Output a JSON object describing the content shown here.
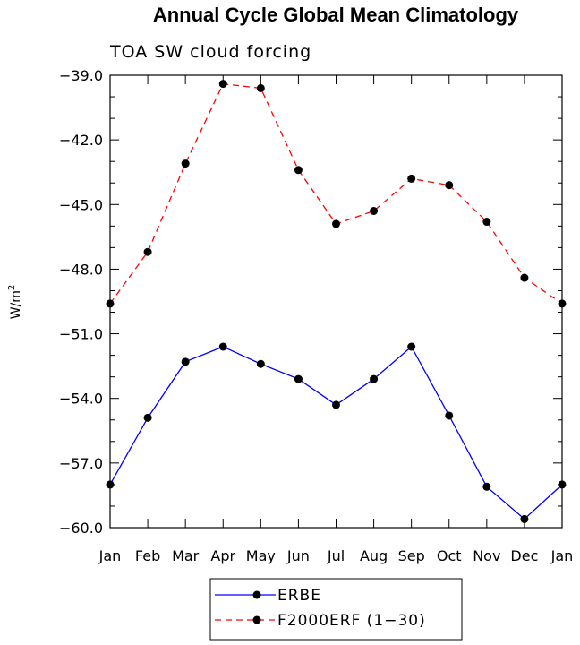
{
  "chart_data": {
    "type": "line",
    "title": "Annual Cycle Global Mean Climatology",
    "subtitle": "TOA SW cloud forcing",
    "ylabel_base": "W/m",
    "ylabel_sup": "2",
    "xlabel": "",
    "categories": [
      "Jan",
      "Feb",
      "Mar",
      "Apr",
      "May",
      "Jun",
      "Jul",
      "Aug",
      "Sep",
      "Oct",
      "Nov",
      "Dec",
      "Jan"
    ],
    "ylim": [
      -60.0,
      -39.0
    ],
    "yticks": [
      "-39.0",
      "-42.0",
      "-45.0",
      "-48.0",
      "-51.0",
      "-54.0",
      "-57.0",
      "-60.0"
    ],
    "series": [
      {
        "name": "ERBE",
        "color": "#0000ff",
        "dash": "solid",
        "values": [
          -58.0,
          -54.9,
          -52.3,
          -51.6,
          -52.4,
          -53.1,
          -54.3,
          -53.1,
          -51.6,
          -54.8,
          -58.1,
          -59.6,
          -58.0
        ]
      },
      {
        "name": "F2000ERF (1-30)",
        "color": "#ff0000",
        "dash": "dashed",
        "values": [
          -49.6,
          -47.2,
          -43.1,
          -39.4,
          -39.6,
          -43.4,
          -45.9,
          -45.3,
          -43.8,
          -44.1,
          -45.8,
          -48.4,
          -49.6
        ]
      }
    ],
    "legend": [
      "ERBE",
      "F2000ERF (1−30)"
    ],
    "legend_position": "bottom-center"
  }
}
